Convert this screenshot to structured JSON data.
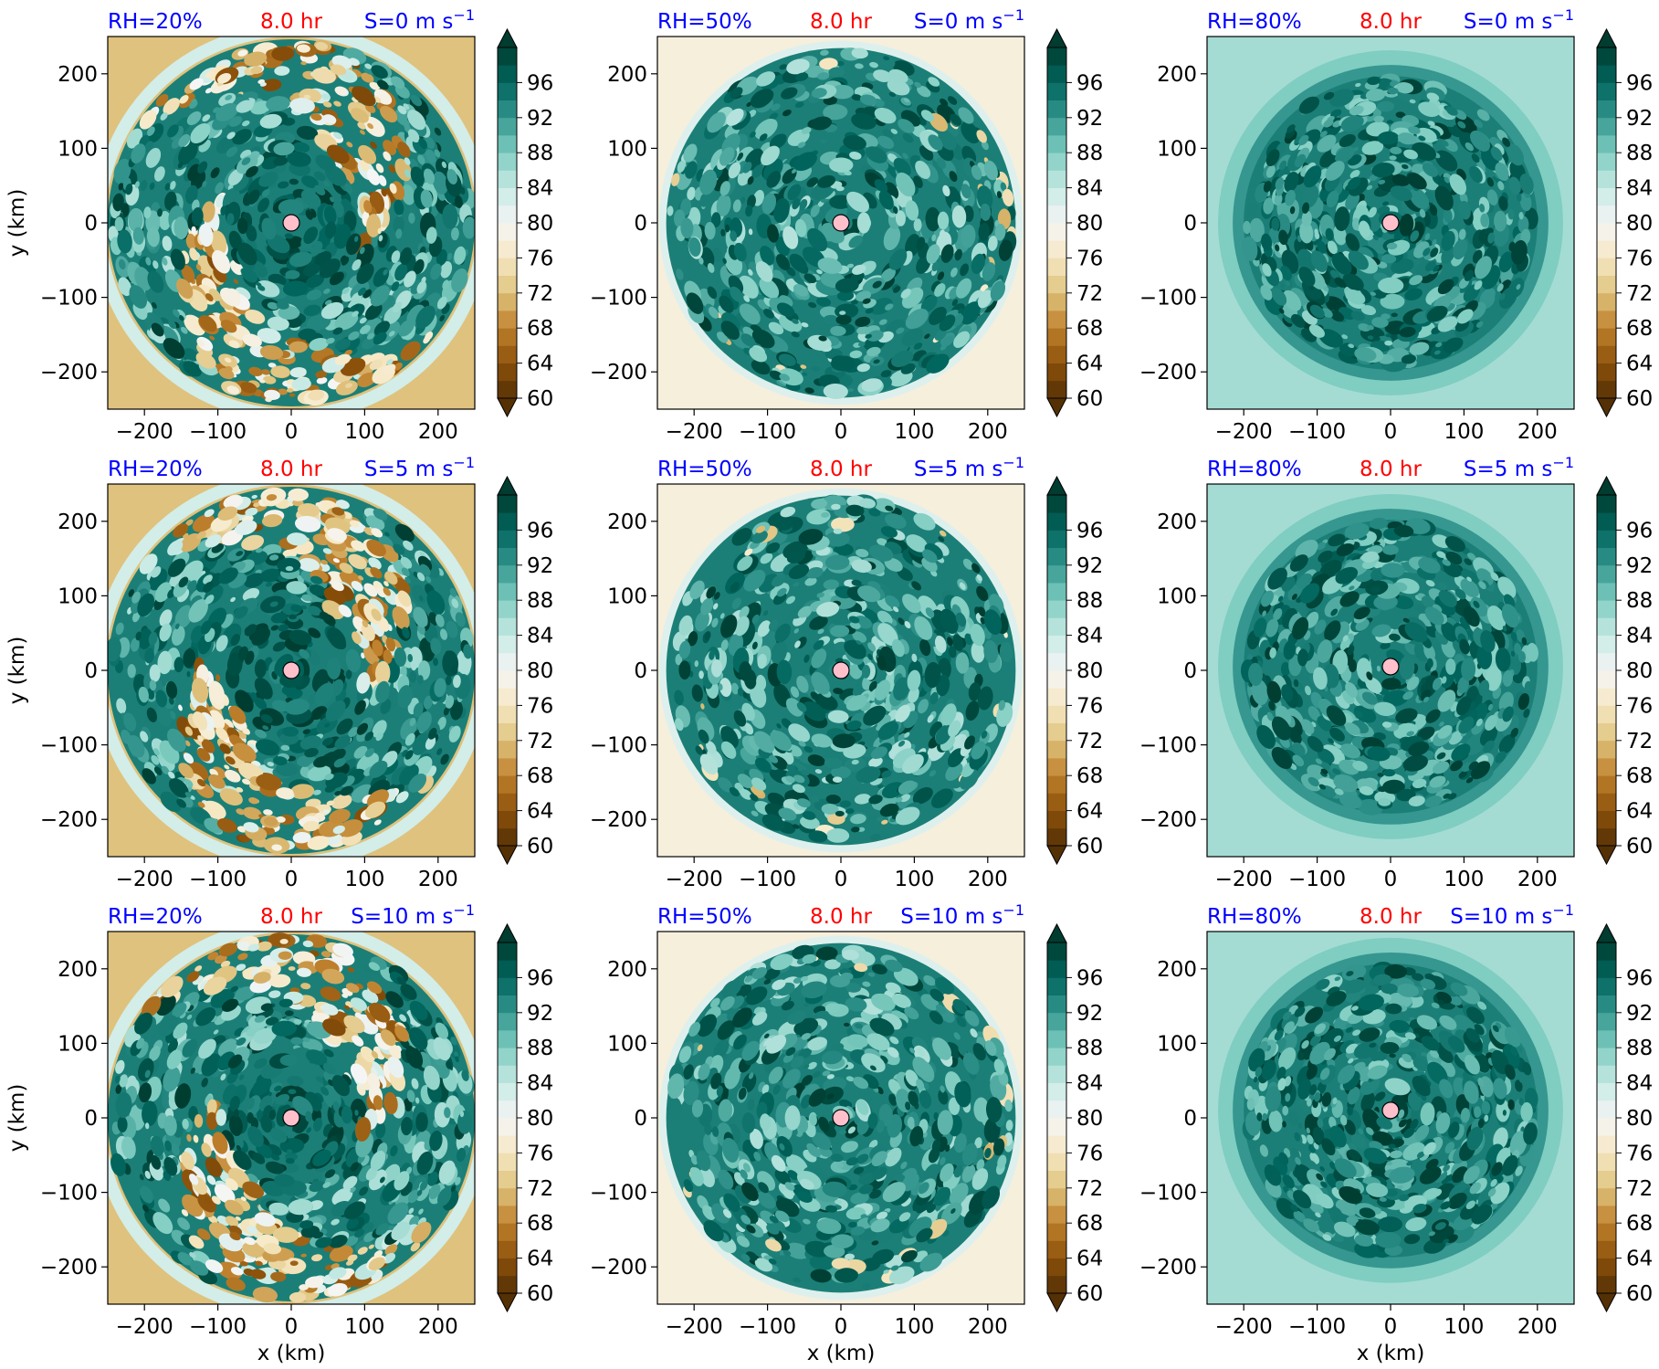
{
  "figure": {
    "x_axis_label": "x (km)",
    "y_axis_label": "y (km)",
    "x_ticks": [
      -200,
      -100,
      0,
      100,
      200
    ],
    "y_ticks": [
      -200,
      -100,
      0,
      100,
      200
    ],
    "axis_range": [
      -250,
      250
    ],
    "colorbar_ticks": [
      60,
      64,
      68,
      72,
      76,
      80,
      84,
      88,
      92,
      96
    ],
    "colorbar_range": [
      60,
      100
    ],
    "colorbar_extend": "both",
    "colormap_colors": [
      "#543005",
      "#8c510a",
      "#bf812d",
      "#dfc27d",
      "#f6e8c3",
      "#f5f5f5",
      "#c7eae5",
      "#80cdc1",
      "#35978f",
      "#01665e",
      "#003c30"
    ],
    "center_marker_color": "#ffc0cb",
    "title_color_left": "#0000ff",
    "title_color_center": "#ff0000",
    "title_color_right": "#0000ff"
  },
  "chart_data": [
    {
      "type": "heatmap",
      "title_left": "RH=20%",
      "title_center": "8.0 hr",
      "title_right": "S=0 m s",
      "title_right_exponent": "−1",
      "rh": 20,
      "time_hr": 8.0,
      "shear": 0,
      "center": [
        0,
        0
      ]
    },
    {
      "type": "heatmap",
      "title_left": "RH=50%",
      "title_center": "8.0 hr",
      "title_right": "S=0 m s",
      "title_right_exponent": "−1",
      "rh": 50,
      "time_hr": 8.0,
      "shear": 0,
      "center": [
        0,
        0
      ]
    },
    {
      "type": "heatmap",
      "title_left": "RH=80%",
      "title_center": "8.0 hr",
      "title_right": "S=0 m s",
      "title_right_exponent": "−1",
      "rh": 80,
      "time_hr": 8.0,
      "shear": 0,
      "center": [
        0,
        0
      ]
    },
    {
      "type": "heatmap",
      "title_left": "RH=20%",
      "title_center": "8.0 hr",
      "title_right": "S=5 m s",
      "title_right_exponent": "−1",
      "rh": 20,
      "time_hr": 8.0,
      "shear": 5,
      "center": [
        0,
        0
      ]
    },
    {
      "type": "heatmap",
      "title_left": "RH=50%",
      "title_center": "8.0 hr",
      "title_right": "S=5 m s",
      "title_right_exponent": "−1",
      "rh": 50,
      "time_hr": 8.0,
      "shear": 5,
      "center": [
        0,
        0
      ]
    },
    {
      "type": "heatmap",
      "title_left": "RH=80%",
      "title_center": "8.0 hr",
      "title_right": "S=5 m s",
      "title_right_exponent": "−1",
      "rh": 80,
      "time_hr": 8.0,
      "shear": 5,
      "center": [
        0,
        5
      ]
    },
    {
      "type": "heatmap",
      "title_left": "RH=20%",
      "title_center": "8.0 hr",
      "title_right": "S=10 m s",
      "title_right_exponent": "−1",
      "rh": 20,
      "time_hr": 8.0,
      "shear": 10,
      "center": [
        0,
        0
      ]
    },
    {
      "type": "heatmap",
      "title_left": "RH=50%",
      "title_center": "8.0 hr",
      "title_right": "S=10 m s",
      "title_right_exponent": "−1",
      "rh": 50,
      "time_hr": 8.0,
      "shear": 10,
      "center": [
        0,
        0
      ]
    },
    {
      "type": "heatmap",
      "title_left": "RH=80%",
      "title_center": "8.0 hr",
      "title_right": "S=10 m s",
      "title_right_exponent": "−1",
      "rh": 80,
      "time_hr": 8.0,
      "shear": 10,
      "center": [
        0,
        10
      ]
    }
  ]
}
